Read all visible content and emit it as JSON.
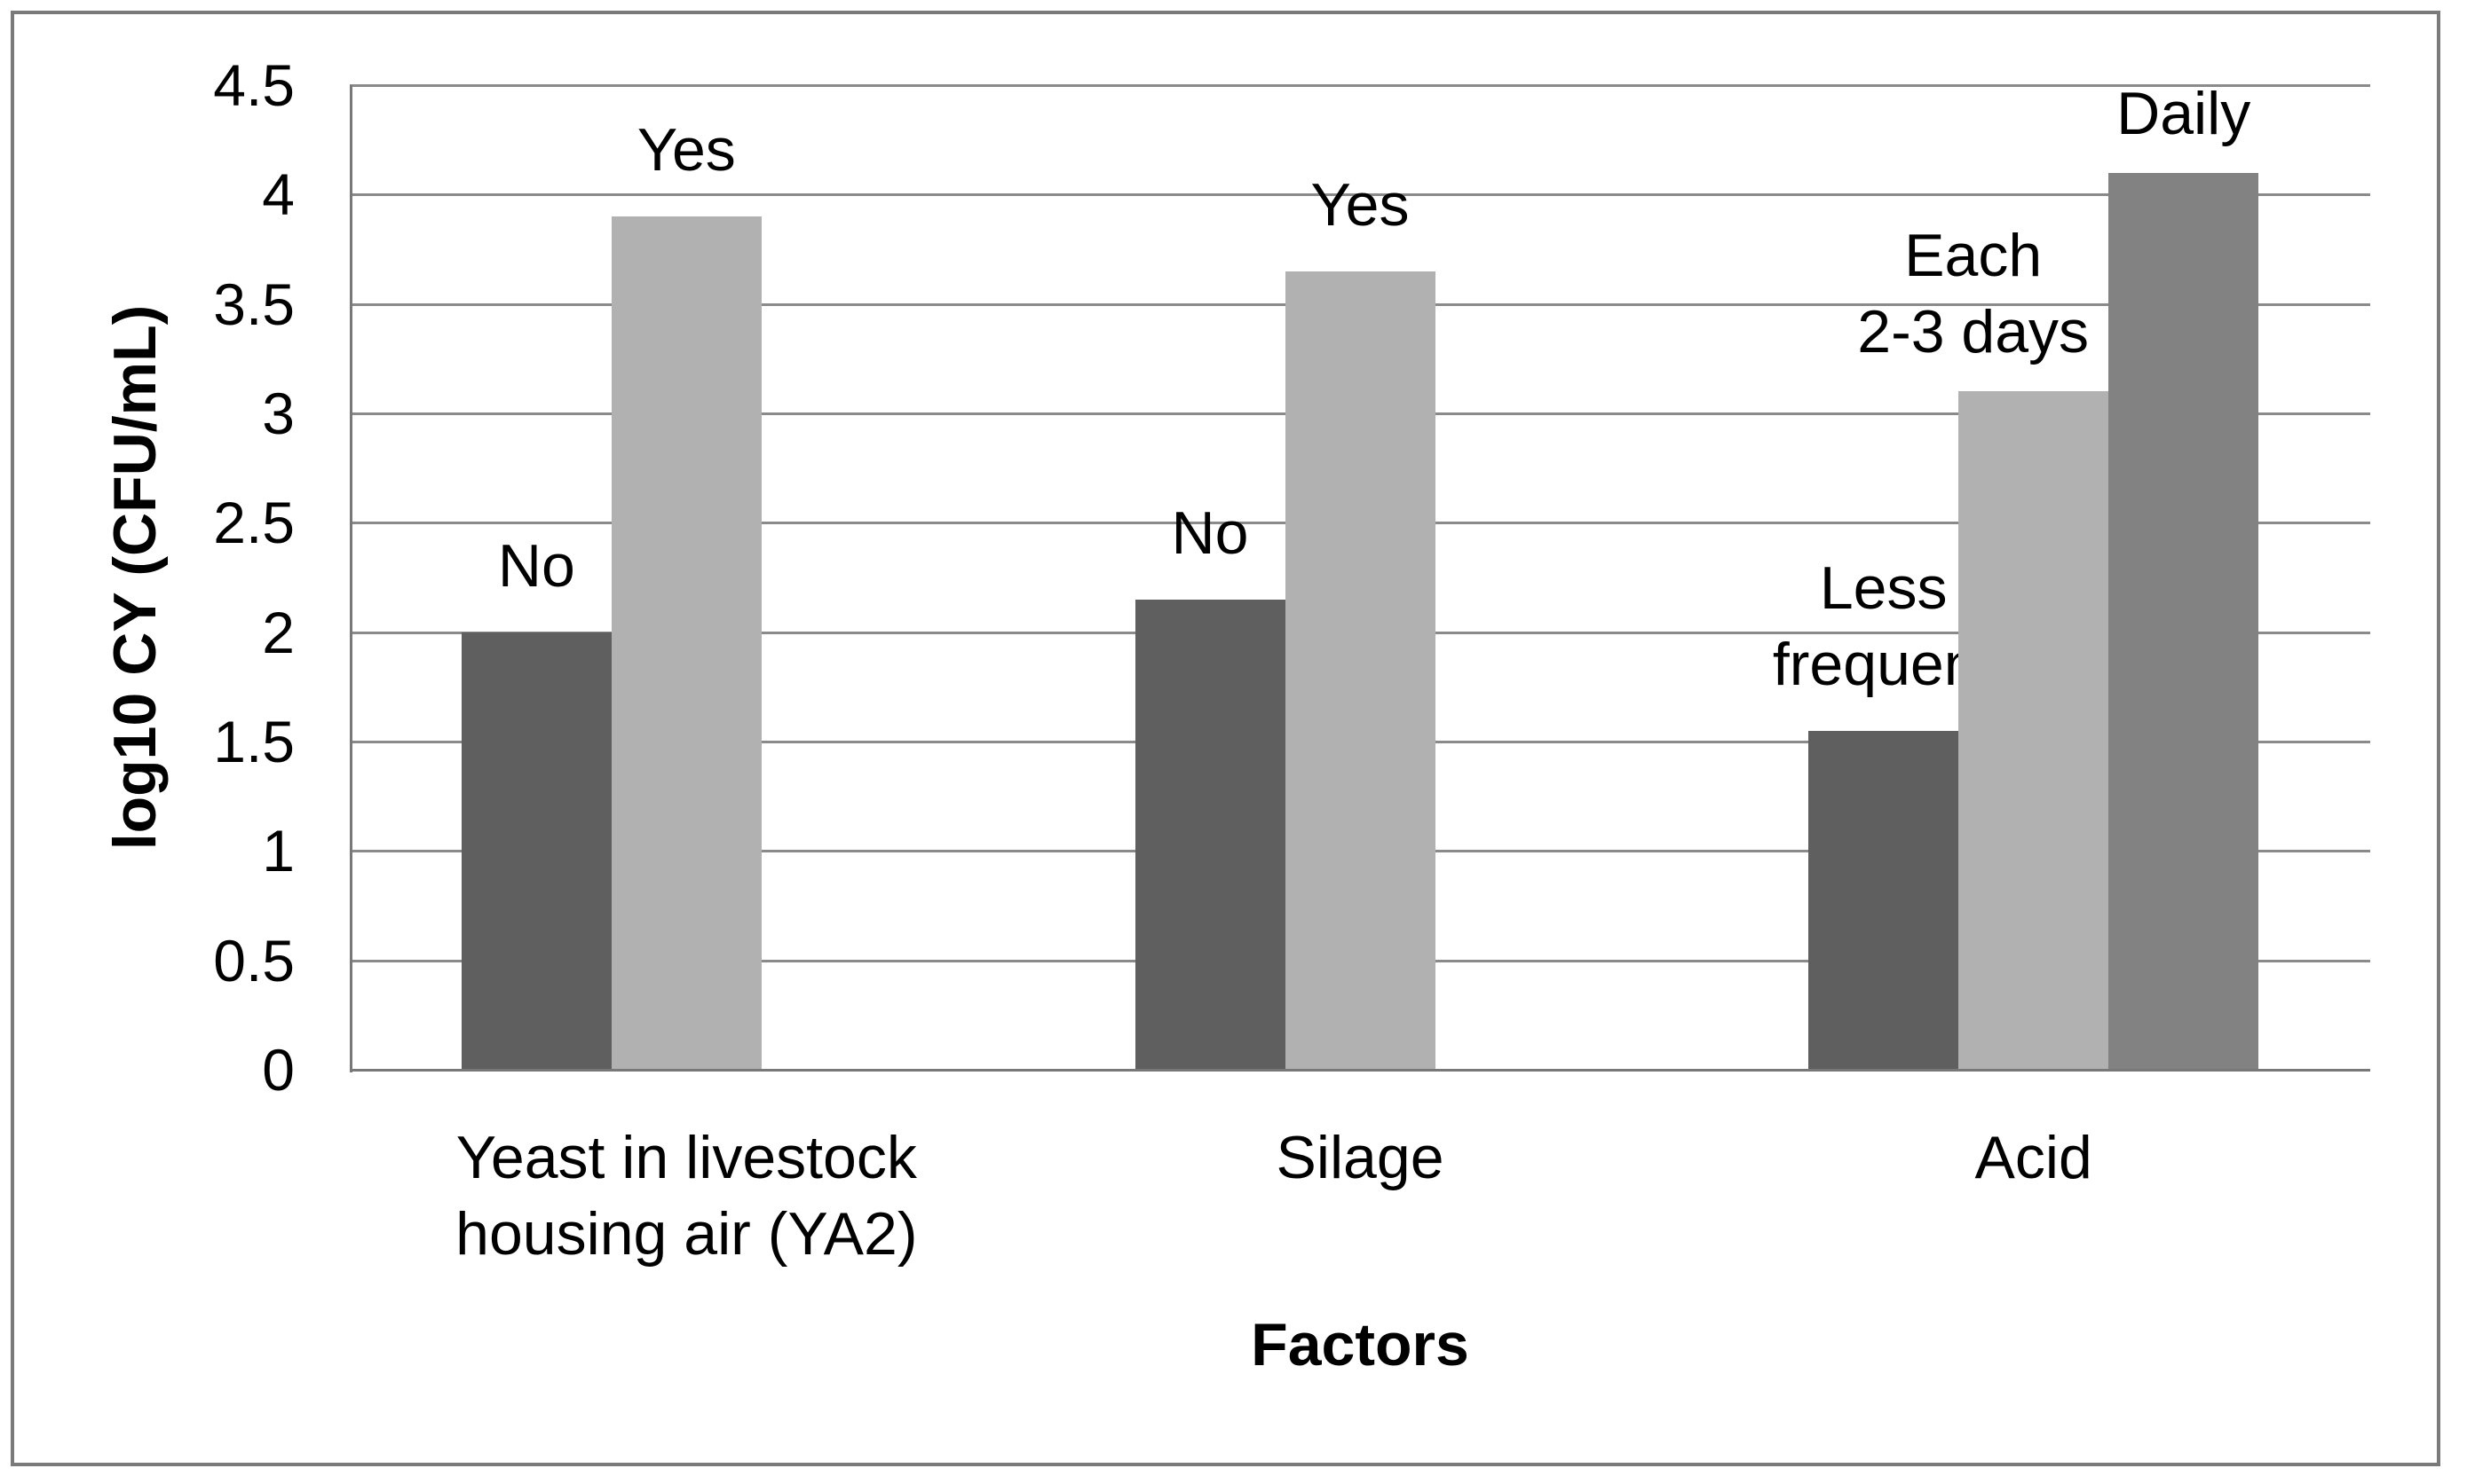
{
  "figure": {
    "background": "#ffffff",
    "border_color": "#7a7a7a"
  },
  "chart_data": {
    "type": "bar",
    "title": "",
    "xlabel": "Factors",
    "ylabel": "log10 CY (CFU/mL)",
    "ylim": [
      0,
      4.5
    ],
    "ytick_step": 0.5,
    "ytick_labels": [
      "4.5",
      "4",
      "3.5",
      "3",
      "2.5",
      "2",
      "1.5",
      "1",
      "0.5",
      "0"
    ],
    "grid": true,
    "legend": "none",
    "gridline_color": "#8a8a8a",
    "axis_color": "#787878",
    "categories": [
      "Yeast in livestock\nhousing air (YA2)",
      "Silage",
      "Acid"
    ],
    "series": [
      {
        "name": "series-1",
        "color": "#5f5f5f",
        "values": [
          2.0,
          2.15,
          1.55
        ],
        "bar_labels": [
          "No",
          "No",
          "Less\nfrequent"
        ]
      },
      {
        "name": "series-2",
        "color": "#b1b1b1",
        "values": [
          3.9,
          3.65,
          3.1
        ],
        "bar_labels": [
          "Yes",
          "Yes",
          "Each\n2-3 days"
        ]
      },
      {
        "name": "series-3",
        "color": "#828282",
        "values": [
          null,
          null,
          4.1
        ],
        "bar_labels": [
          null,
          null,
          "Daily"
        ]
      }
    ]
  }
}
